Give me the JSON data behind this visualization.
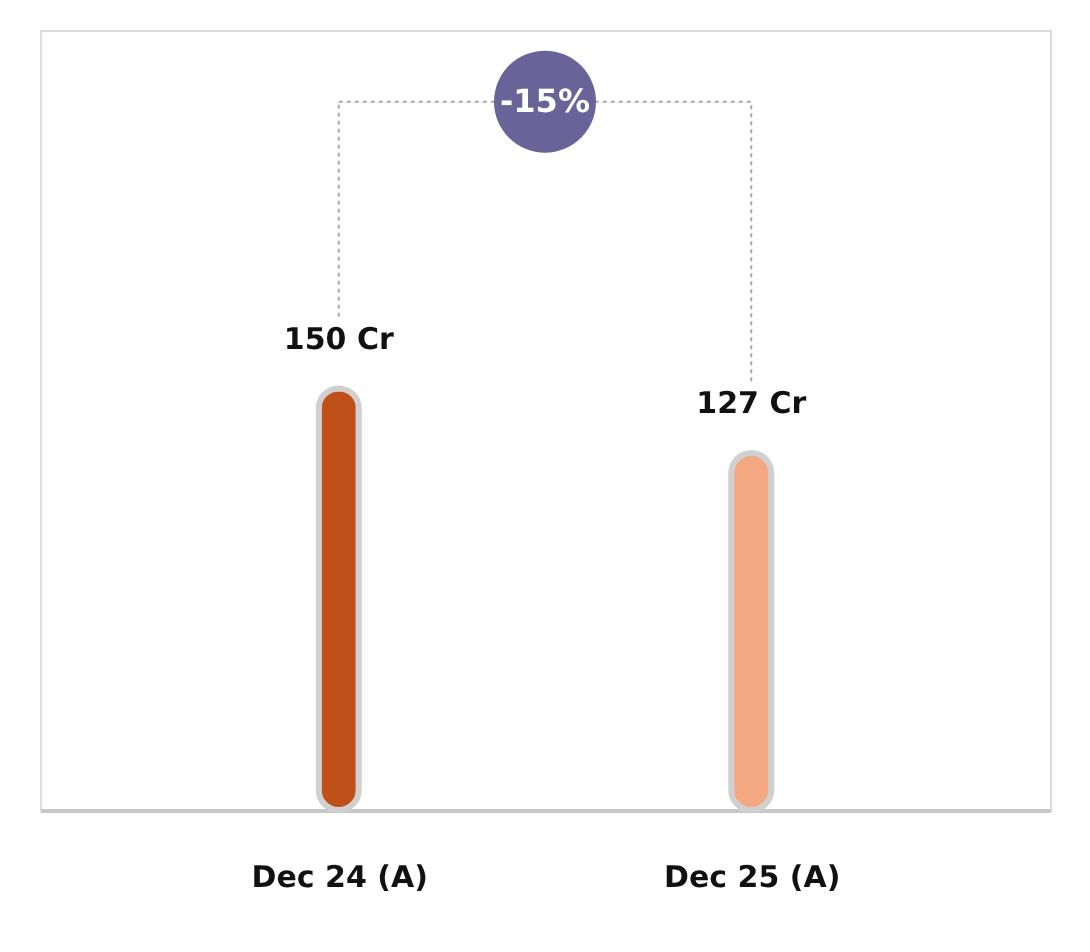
{
  "chart_data": {
    "type": "bar",
    "categories": [
      "Dec 24 (A)",
      "Dec 25 (A)"
    ],
    "values": [
      150,
      127
    ],
    "colors": [
      "#c0501a",
      "#f4a882"
    ],
    "value_labels": [
      "150 Cr",
      "127 Cr"
    ],
    "annotations": [
      "-15%"
    ]
  }
}
